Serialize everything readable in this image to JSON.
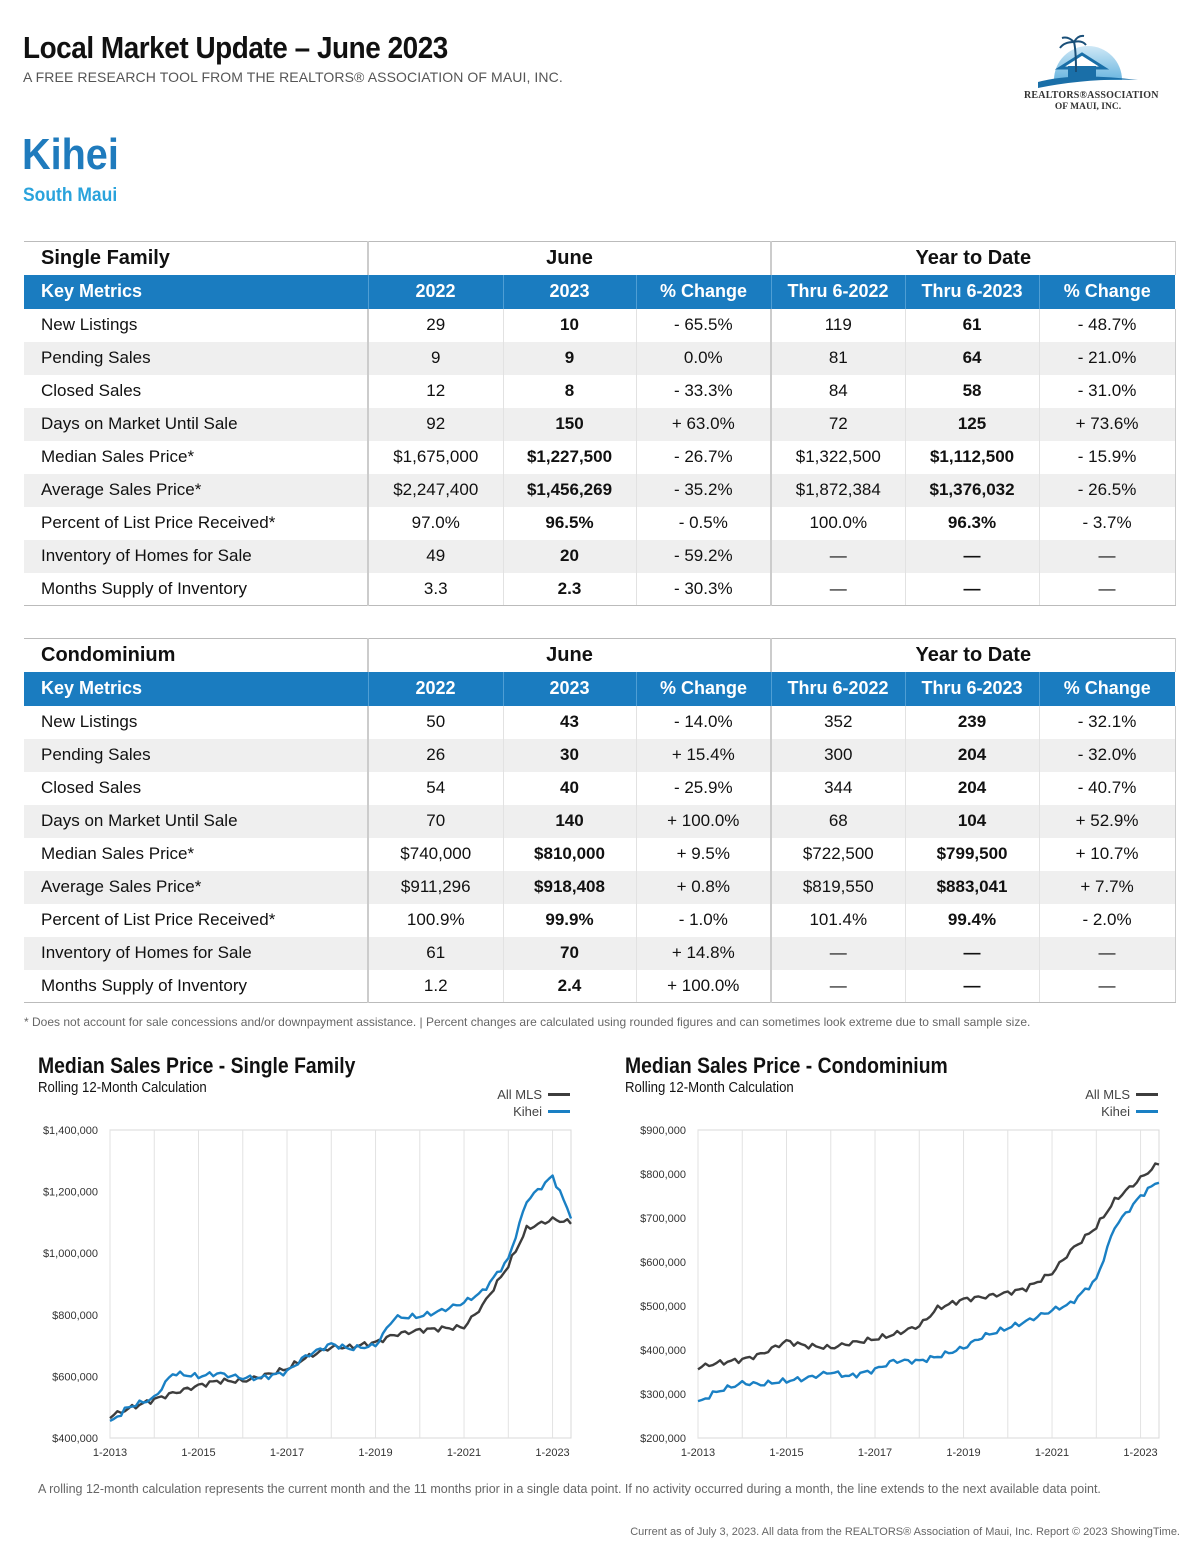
{
  "header": {
    "title": "Local Market Update – June 2023",
    "subtitle": "A FREE RESEARCH TOOL FROM THE REALTORS® ASSOCIATION OF MAUI, INC.",
    "area": "Kihei",
    "region": "South Maui",
    "logo_line1": "REALTORS®ASSOCIATION",
    "logo_line2": "OF MAUI, INC."
  },
  "colors": {
    "accent": "#1a7cc0",
    "title_blue": "#1f7bbd",
    "region_blue": "#2aa3dc",
    "all_mls": "#3d3d3d",
    "local": "#1a80c4"
  },
  "tables": [
    {
      "section": "Single Family",
      "period1": "June",
      "period2": "Year to Date",
      "columns": [
        "Key Metrics",
        "2022",
        "2023",
        "% Change",
        "Thru 6-2022",
        "Thru 6-2023",
        "% Change"
      ],
      "rows": [
        [
          "New Listings",
          "29",
          "10",
          "- 65.5%",
          "119",
          "61",
          "- 48.7%"
        ],
        [
          "Pending Sales",
          "9",
          "9",
          "0.0%",
          "81",
          "64",
          "- 21.0%"
        ],
        [
          "Closed Sales",
          "12",
          "8",
          "- 33.3%",
          "84",
          "58",
          "- 31.0%"
        ],
        [
          "Days on Market Until Sale",
          "92",
          "150",
          "+ 63.0%",
          "72",
          "125",
          "+ 73.6%"
        ],
        [
          "Median Sales Price*",
          "$1,675,000",
          "$1,227,500",
          "- 26.7%",
          "$1,322,500",
          "$1,112,500",
          "- 15.9%"
        ],
        [
          "Average Sales Price*",
          "$2,247,400",
          "$1,456,269",
          "- 35.2%",
          "$1,872,384",
          "$1,376,032",
          "- 26.5%"
        ],
        [
          "Percent of List Price Received*",
          "97.0%",
          "96.5%",
          "- 0.5%",
          "100.0%",
          "96.3%",
          "- 3.7%"
        ],
        [
          "Inventory of Homes for Sale",
          "49",
          "20",
          "- 59.2%",
          "—",
          "—",
          "—"
        ],
        [
          "Months Supply of Inventory",
          "3.3",
          "2.3",
          "- 30.3%",
          "—",
          "—",
          "—"
        ]
      ]
    },
    {
      "section": "Condominium",
      "period1": "June",
      "period2": "Year to Date",
      "columns": [
        "Key Metrics",
        "2022",
        "2023",
        "% Change",
        "Thru 6-2022",
        "Thru 6-2023",
        "% Change"
      ],
      "rows": [
        [
          "New Listings",
          "50",
          "43",
          "- 14.0%",
          "352",
          "239",
          "- 32.1%"
        ],
        [
          "Pending Sales",
          "26",
          "30",
          "+ 15.4%",
          "300",
          "204",
          "- 32.0%"
        ],
        [
          "Closed Sales",
          "54",
          "40",
          "- 25.9%",
          "344",
          "204",
          "- 40.7%"
        ],
        [
          "Days on Market Until Sale",
          "70",
          "140",
          "+ 100.0%",
          "68",
          "104",
          "+ 52.9%"
        ],
        [
          "Median Sales Price*",
          "$740,000",
          "$810,000",
          "+ 9.5%",
          "$722,500",
          "$799,500",
          "+ 10.7%"
        ],
        [
          "Average Sales Price*",
          "$911,296",
          "$918,408",
          "+ 0.8%",
          "$819,550",
          "$883,041",
          "+ 7.7%"
        ],
        [
          "Percent of List Price Received*",
          "100.9%",
          "99.9%",
          "- 1.0%",
          "101.4%",
          "99.4%",
          "- 2.0%"
        ],
        [
          "Inventory of Homes for Sale",
          "61",
          "70",
          "+ 14.8%",
          "—",
          "—",
          "—"
        ],
        [
          "Months Supply of Inventory",
          "1.2",
          "2.4",
          "+ 100.0%",
          "—",
          "—",
          "—"
        ]
      ]
    }
  ],
  "footnote": "* Does not account for sale concessions and/or downpayment assistance. | Percent changes are calculated using rounded figures and can sometimes look extreme due to small sample size.",
  "rolling_note": "A rolling 12-month calculation represents the current month and the 11 months prior in a single data point. If no activity occurred during a month, the line extends to the next available data point.",
  "current_note": "Current as of July 3, 2023. All data from the REALTORS® Association of Maui, Inc. Report © 2023 ShowingTime.",
  "chart_data": [
    {
      "type": "line",
      "title": "Median Sales Price - Single Family",
      "subtitle": "Rolling 12-Month Calculation",
      "x_ticks": [
        "1-2013",
        "1-2015",
        "1-2017",
        "1-2019",
        "1-2021",
        "1-2023"
      ],
      "x_range": [
        "2013-01",
        "2023-06"
      ],
      "y_ticks": [
        "$400,000",
        "$600,000",
        "$800,000",
        "$1,000,000",
        "$1,200,000",
        "$1,400,000"
      ],
      "ylim": [
        400000,
        1400000
      ],
      "grid": "vertical",
      "legend": "top-right",
      "series": [
        {
          "name": "All MLS",
          "color": "#3d3d3d",
          "points": [
            [
              "2013-01",
              470000
            ],
            [
              "2013-06",
              495000
            ],
            [
              "2014-01",
              525000
            ],
            [
              "2014-06",
              545000
            ],
            [
              "2015-01",
              570000
            ],
            [
              "2015-06",
              585000
            ],
            [
              "2016-01",
              585000
            ],
            [
              "2016-06",
              600000
            ],
            [
              "2017-01",
              625000
            ],
            [
              "2017-06",
              660000
            ],
            [
              "2018-01",
              695000
            ],
            [
              "2018-06",
              695000
            ],
            [
              "2019-01",
              710000
            ],
            [
              "2019-06",
              735000
            ],
            [
              "2020-01",
              750000
            ],
            [
              "2020-06",
              755000
            ],
            [
              "2021-01",
              760000
            ],
            [
              "2021-06",
              830000
            ],
            [
              "2022-01",
              960000
            ],
            [
              "2022-06",
              1080000
            ],
            [
              "2023-01",
              1110000
            ],
            [
              "2023-06",
              1100000
            ]
          ]
        },
        {
          "name": "Kihei",
          "color": "#1a80c4",
          "points": [
            [
              "2013-01",
              450000
            ],
            [
              "2013-06",
              500000
            ],
            [
              "2014-01",
              530000
            ],
            [
              "2014-06",
              610000
            ],
            [
              "2015-01",
              600000
            ],
            [
              "2015-06",
              610000
            ],
            [
              "2016-01",
              595000
            ],
            [
              "2016-06",
              595000
            ],
            [
              "2017-01",
              615000
            ],
            [
              "2017-06",
              665000
            ],
            [
              "2018-01",
              705000
            ],
            [
              "2018-06",
              690000
            ],
            [
              "2019-01",
              700000
            ],
            [
              "2019-06",
              790000
            ],
            [
              "2020-01",
              795000
            ],
            [
              "2020-06",
              810000
            ],
            [
              "2021-01",
              840000
            ],
            [
              "2021-06",
              875000
            ],
            [
              "2022-01",
              980000
            ],
            [
              "2022-06",
              1170000
            ],
            [
              "2023-01",
              1250000
            ],
            [
              "2023-06",
              1120000
            ]
          ]
        }
      ]
    },
    {
      "type": "line",
      "title": "Median Sales Price - Condominium",
      "subtitle": "Rolling 12-Month Calculation",
      "x_ticks": [
        "1-2013",
        "1-2015",
        "1-2017",
        "1-2019",
        "1-2021",
        "1-2023"
      ],
      "x_range": [
        "2013-01",
        "2023-06"
      ],
      "y_ticks": [
        "$200,000",
        "$300,000",
        "$400,000",
        "$500,000",
        "$600,000",
        "$700,000",
        "$800,000",
        "$900,000"
      ],
      "ylim": [
        200000,
        900000
      ],
      "grid": "vertical",
      "legend": "top-right",
      "series": [
        {
          "name": "All MLS",
          "color": "#3d3d3d",
          "points": [
            [
              "2013-01",
              360000
            ],
            [
              "2013-06",
              370000
            ],
            [
              "2014-01",
              378000
            ],
            [
              "2014-06",
              390000
            ],
            [
              "2015-01",
              420000
            ],
            [
              "2015-06",
              410000
            ],
            [
              "2016-01",
              405000
            ],
            [
              "2016-06",
              415000
            ],
            [
              "2017-01",
              425000
            ],
            [
              "2017-06",
              435000
            ],
            [
              "2018-01",
              455000
            ],
            [
              "2018-06",
              495000
            ],
            [
              "2019-01",
              515000
            ],
            [
              "2019-06",
              520000
            ],
            [
              "2020-01",
              530000
            ],
            [
              "2020-06",
              540000
            ],
            [
              "2021-01",
              575000
            ],
            [
              "2021-06",
              625000
            ],
            [
              "2022-01",
              680000
            ],
            [
              "2022-06",
              740000
            ],
            [
              "2023-01",
              790000
            ],
            [
              "2023-06",
              825000
            ]
          ]
        },
        {
          "name": "Kihei",
          "color": "#1a80c4",
          "points": [
            [
              "2013-01",
              280000
            ],
            [
              "2013-06",
              305000
            ],
            [
              "2014-01",
              325000
            ],
            [
              "2014-06",
              322000
            ],
            [
              "2015-01",
              330000
            ],
            [
              "2015-06",
              335000
            ],
            [
              "2016-01",
              350000
            ],
            [
              "2016-06",
              340000
            ],
            [
              "2017-01",
              355000
            ],
            [
              "2017-06",
              375000
            ],
            [
              "2018-01",
              375000
            ],
            [
              "2018-06",
              385000
            ],
            [
              "2019-01",
              405000
            ],
            [
              "2019-06",
              430000
            ],
            [
              "2020-01",
              450000
            ],
            [
              "2020-06",
              465000
            ],
            [
              "2021-01",
              490000
            ],
            [
              "2021-06",
              505000
            ],
            [
              "2022-01",
              560000
            ],
            [
              "2022-06",
              680000
            ],
            [
              "2023-01",
              750000
            ],
            [
              "2023-06",
              785000
            ]
          ]
        }
      ]
    }
  ]
}
